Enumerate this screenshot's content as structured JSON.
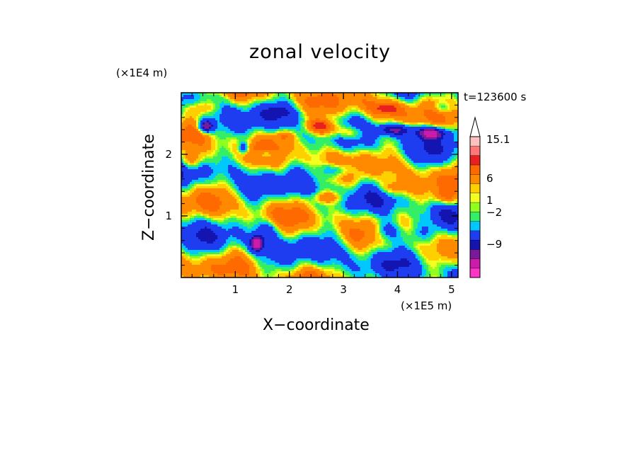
{
  "chart_data": {
    "type": "heatmap",
    "title": "zonal velocity",
    "xlabel": "X−coordinate",
    "ylabel": "Z−coordinate",
    "x_unit": "(×1E5 m)",
    "y_unit": "(×1E4 m)",
    "time_label": "t=123600 s",
    "xlim": [
      0,
      5.12
    ],
    "ylim": [
      0,
      3.0
    ],
    "x_ticks": [
      "1",
      "2",
      "3",
      "4",
      "5"
    ],
    "y_ticks": [
      "1",
      "2"
    ],
    "colorbar": {
      "labels": [
        "15.1",
        "6",
        "1",
        "−2",
        "−9"
      ],
      "colors": [
        "#ff33c8",
        "#cc1aaa",
        "#7a1a9a",
        "#1414b0",
        "#1e3cf0",
        "#00c8ff",
        "#33ee66",
        "#90ff20",
        "#f2ff20",
        "#ffd000",
        "#ff8a00",
        "#ff6a00",
        "#e82020",
        "#ff7878",
        "#ffc0c0"
      ]
    }
  }
}
